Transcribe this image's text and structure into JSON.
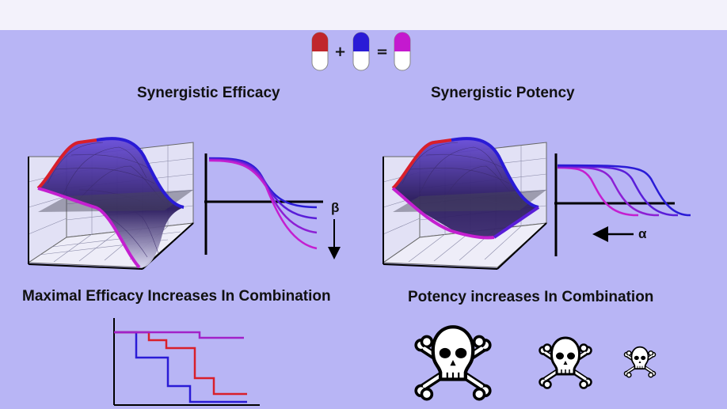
{
  "equation": {
    "plus": "+",
    "equals": "=",
    "pills": [
      {
        "name": "drug-a-pill",
        "color": "#c0262b"
      },
      {
        "name": "drug-b-pill",
        "color": "#2a1bd6"
      },
      {
        "name": "combination-pill",
        "color": "#c419cf"
      }
    ]
  },
  "panels": {
    "efficacy": {
      "title": "Synergistic Efficacy",
      "caption": "Maximal Efficacy Increases In Combination",
      "parameter": "β"
    },
    "potency": {
      "title": "Synergistic Potency",
      "caption": "Potency increases In Combination",
      "parameter": "α"
    }
  },
  "colors": {
    "drug_a": "#d91f2a",
    "drug_b": "#2a1bd6",
    "combination": "#c41fd0",
    "background": "#b8b5f5",
    "topbar": "#f3f2fb"
  },
  "icons": [
    "pill-icon",
    "skull-crossbones-icon",
    "arrow-down-icon",
    "arrow-left-icon"
  ]
}
